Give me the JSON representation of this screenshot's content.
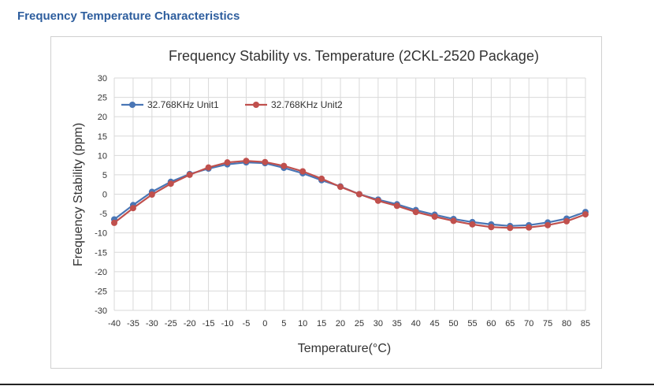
{
  "section_heading": "Frequency Temperature Characteristics",
  "colors": {
    "heading": "#2e5e9e",
    "unit1": "#4a76b5",
    "unit2": "#c0504d",
    "grid": "#d9d9d9"
  },
  "chart_data": {
    "type": "line",
    "title": "Frequency Stability vs. Temperature (2CKL-2520 Package)",
    "xlabel": "Temperature(°C)",
    "ylabel": "Frequency Stability (ppm)",
    "x": [
      -40,
      -35,
      -30,
      -25,
      -20,
      -15,
      -10,
      -5,
      0,
      5,
      10,
      15,
      20,
      25,
      30,
      35,
      40,
      45,
      50,
      55,
      60,
      65,
      70,
      75,
      80,
      85
    ],
    "x_ticks": [
      "-40",
      "-35",
      "-30",
      "-25",
      "-20",
      "-15",
      "-10",
      "-5",
      "0",
      "5",
      "10",
      "15",
      "20",
      "25",
      "30",
      "35",
      "40",
      "45",
      "50",
      "55",
      "60",
      "65",
      "70",
      "75",
      "80",
      "85"
    ],
    "y_ticks": [
      "30",
      "25",
      "20",
      "15",
      "10",
      "5",
      "0",
      "-5",
      "-10",
      "-15",
      "-20",
      "-25",
      "-30"
    ],
    "ylim": [
      -30,
      30
    ],
    "grid": true,
    "legend_position": "top-left",
    "series": [
      {
        "name": "32.768KHz Unit1",
        "color": "#4a76b5",
        "values": [
          -6.5,
          -2.8,
          0.6,
          3.2,
          5.2,
          6.6,
          7.7,
          8.2,
          8.0,
          6.8,
          5.4,
          3.6,
          2.0,
          0.0,
          -1.4,
          -2.6,
          -4.1,
          -5.3,
          -6.4,
          -7.2,
          -7.8,
          -8.2,
          -8.0,
          -7.3,
          -6.3,
          -4.6
        ]
      },
      {
        "name": "32.768KHz Unit2",
        "color": "#c0504d",
        "values": [
          -7.4,
          -3.6,
          -0.1,
          2.7,
          5.0,
          6.9,
          8.2,
          8.6,
          8.3,
          7.3,
          5.9,
          4.0,
          1.9,
          0.0,
          -1.7,
          -3.0,
          -4.6,
          -5.8,
          -6.9,
          -7.8,
          -8.5,
          -8.7,
          -8.6,
          -8.0,
          -7.0,
          -5.2
        ]
      }
    ]
  }
}
